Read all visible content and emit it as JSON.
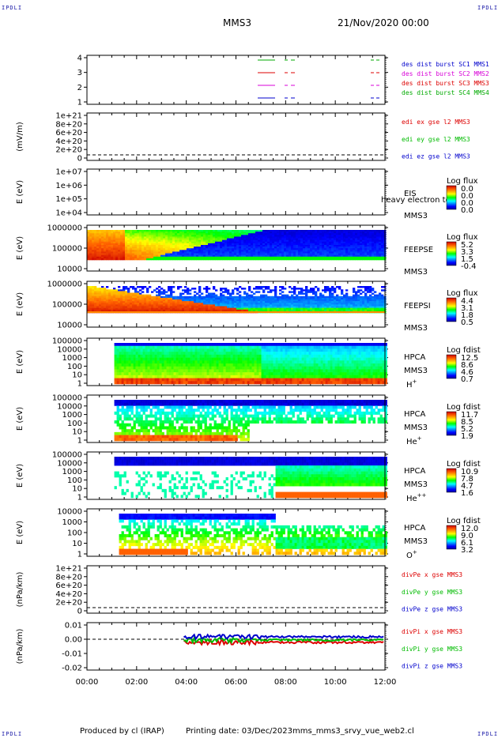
{
  "header": {
    "corner_tl": "IPDLI",
    "corner_tr": "IPDLI",
    "corner_bl": "IPDLI",
    "corner_br": "IPDLI",
    "spacecraft": "MMS3",
    "date": "21/Nov/2020 00:00"
  },
  "footer": {
    "produced_by": "Produced by cl (IRAP)",
    "printing_date": "Printing date: 03/Dec/2023",
    "filename": "mms_mms3_srvy_vue_web2.cl"
  },
  "colors": {
    "mms1": "#00aa00",
    "mms2": "#d800d8",
    "mms3": "#dd0000",
    "mms4": "#0000cc",
    "red": "#dd0000",
    "green": "#00bb00",
    "blue": "#0000cc"
  },
  "chart_data": {
    "type": "heatmap",
    "x_axis": {
      "ticks": [
        "00:00",
        "02:00",
        "04:00",
        "06:00",
        "08:00",
        "10:00",
        "12:00"
      ],
      "range_hours": [
        0,
        12
      ]
    },
    "panels": [
      {
        "id": "burst",
        "type": "line",
        "ylabel": "",
        "yticks": [
          "4",
          "3",
          "2",
          "1"
        ],
        "legend": [
          {
            "text": "des dist burst SC1 MMS1",
            "color": "#0000cc"
          },
          {
            "text": "des dist burst SC2 MMS2",
            "color": "#d800d8"
          },
          {
            "text": "des dist burst SC3 MMS3",
            "color": "#dd0000"
          },
          {
            "text": "des dist burst SC4 MMS4",
            "color": "#00aa00"
          }
        ]
      },
      {
        "id": "edi",
        "type": "line",
        "ylabel": "(mV/m)",
        "yticks": [
          "1e+21",
          "8e+20",
          "6e+20",
          "4e+20",
          "2e+20",
          "0"
        ],
        "legend": [
          {
            "text": "edi ex gse l2 MMS3",
            "color": "#dd0000"
          },
          {
            "text": "edi ey gse l2 MMS3",
            "color": "#00bb00"
          },
          {
            "text": "edi ez gse l2 MMS3",
            "color": "#0000cc"
          }
        ]
      },
      {
        "id": "eis",
        "type": "heatmap",
        "ylabel": "E (eV)",
        "yticks": [
          "1e+07",
          "1e+06",
          "1e+05",
          "1e+04"
        ],
        "instrument": "EIS",
        "overlay_text": "heavy electron to",
        "sc": "MMS3",
        "cbar_title": "Log flux",
        "cbar_ticks": [
          "0.0",
          "0.0",
          "0.0",
          "0.0"
        ]
      },
      {
        "id": "feepse",
        "type": "heatmap",
        "ylabel": "E (eV)",
        "yticks": [
          "1000000",
          "100000",
          "10000"
        ],
        "instrument": "FEEPSE",
        "sc": "MMS3",
        "cbar_title": "Log flux",
        "cbar_ticks": [
          "5.2",
          "3.3",
          "1.5",
          "-0.4"
        ]
      },
      {
        "id": "feepsi",
        "type": "heatmap",
        "ylabel": "E (eV)",
        "yticks": [
          "1000000",
          "100000",
          "10000"
        ],
        "instrument": "FEEPSI",
        "sc": "MMS3",
        "cbar_title": "Log flux",
        "cbar_ticks": [
          "4.4",
          "3.1",
          "1.8",
          "0.5"
        ]
      },
      {
        "id": "hpca_h",
        "type": "heatmap",
        "ylabel": "E (eV)",
        "yticks": [
          "100000",
          "10000",
          "1000",
          "100",
          "10",
          "1"
        ],
        "instrument": "HPCA",
        "sc": "MMS3",
        "species": "H",
        "charge": "+",
        "cbar_title": "Log fdist",
        "cbar_ticks": [
          "12.5",
          "8.6",
          "4.6",
          "0.7"
        ]
      },
      {
        "id": "hpca_he",
        "type": "heatmap",
        "ylabel": "E (eV)",
        "yticks": [
          "100000",
          "10000",
          "1000",
          "100",
          "10",
          "1"
        ],
        "instrument": "HPCA",
        "sc": "MMS3",
        "species": "He",
        "charge": "+",
        "cbar_title": "Log fdist",
        "cbar_ticks": [
          "11.7",
          "8.5",
          "5.2",
          "1.9"
        ]
      },
      {
        "id": "hpca_hepp",
        "type": "heatmap",
        "ylabel": "E (eV)",
        "yticks": [
          "100000",
          "10000",
          "1000",
          "100",
          "10",
          "1"
        ],
        "instrument": "HPCA",
        "sc": "MMS3",
        "species": "He",
        "charge": "++",
        "cbar_title": "Log fdist",
        "cbar_ticks": [
          "10.9",
          "7.8",
          "4.7",
          "1.6"
        ]
      },
      {
        "id": "hpca_o",
        "type": "heatmap",
        "ylabel": "E (eV)",
        "yticks": [
          "10000",
          "1000",
          "100",
          "10",
          "1"
        ],
        "instrument": "HPCA",
        "sc": "MMS3",
        "species": "O",
        "charge": "+",
        "cbar_title": "Log fdist",
        "cbar_ticks": [
          "12.0",
          "9.0",
          "6.1",
          "3.2"
        ]
      },
      {
        "id": "divpe",
        "type": "line",
        "ylabel": "(nPa/km)",
        "yticks": [
          "1e+21",
          "8e+20",
          "6e+20",
          "4e+20",
          "2e+20",
          "0"
        ],
        "legend": [
          {
            "text": "divPe x gse MMS3",
            "color": "#dd0000"
          },
          {
            "text": "divPe y gse MMS3",
            "color": "#00bb00"
          },
          {
            "text": "divPe z gse MMS3",
            "color": "#0000cc"
          }
        ]
      },
      {
        "id": "divpi",
        "type": "line",
        "ylabel": "(nPa/km)",
        "yticks": [
          "0.01",
          "0.00",
          "-0.01",
          "-0.02"
        ],
        "ylim": [
          -0.02,
          0.01
        ],
        "legend": [
          {
            "text": "divPi x gse MMS3",
            "color": "#dd0000"
          },
          {
            "text": "divPi y gse MMS3",
            "color": "#00bb00"
          },
          {
            "text": "divPi z gse MMS3",
            "color": "#0000cc"
          }
        ]
      }
    ]
  }
}
